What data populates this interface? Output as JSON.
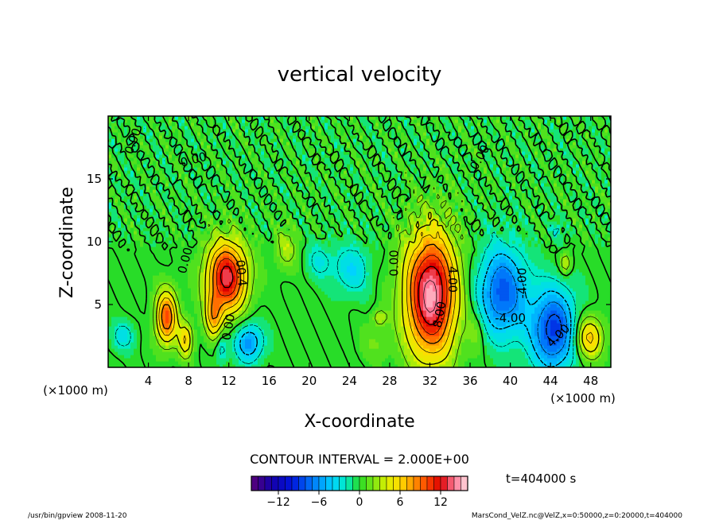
{
  "chart_data": {
    "type": "heatmap",
    "title": "vertical velocity",
    "xlabel": "X-coordinate",
    "ylabel": "Z-coordinate",
    "x_unit": "(×1000 m)",
    "z_unit": "(×1000 m)",
    "xlim": [
      0,
      50
    ],
    "zlim": [
      0,
      20
    ],
    "x_ticks": [
      "4",
      "8",
      "12",
      "16",
      "20",
      "24",
      "28",
      "32",
      "36",
      "40",
      "44",
      "48"
    ],
    "z_ticks": [
      "5",
      "10",
      "15"
    ],
    "contour_interval_text": "CONTOUR INTERVAL = 2.000E+00",
    "time_text": "t=404000 s",
    "colorbar": {
      "min": -16,
      "max": 16,
      "step": 1,
      "tick_labels": [
        "−12",
        "−6",
        "0",
        "6",
        "12"
      ],
      "tick_values": [
        -12,
        -6,
        0,
        6,
        12
      ]
    },
    "contour_labels": [
      {
        "text": "0.00",
        "x": 2.5,
        "z": 18.0,
        "angle": -70
      },
      {
        "text": "0.00",
        "x": 8.5,
        "z": 16.5,
        "angle": -15
      },
      {
        "text": "0.00",
        "x": 7.7,
        "z": 8.5,
        "angle": -75
      },
      {
        "text": "00.4",
        "x": 13.2,
        "z": 7.5,
        "angle": 85
      },
      {
        "text": "0.00",
        "x": 12.0,
        "z": 3.2,
        "angle": -80
      },
      {
        "text": "0.00",
        "x": 28.5,
        "z": 8.3,
        "angle": -90
      },
      {
        "text": "4.00",
        "x": 34.2,
        "z": 7.0,
        "angle": 90
      },
      {
        "text": "8.00",
        "x": 33.0,
        "z": 4.2,
        "angle": -80
      },
      {
        "text": "0.00",
        "x": 37.0,
        "z": 16.7,
        "angle": -60
      },
      {
        "text": "-4.00",
        "x": 41.2,
        "z": 6.7,
        "angle": -90
      },
      {
        "text": "-4.00",
        "x": 40.0,
        "z": 3.9,
        "angle": 0
      },
      {
        "text": "4.00",
        "x": 44.8,
        "z": 2.5,
        "angle": -45
      }
    ],
    "features": [
      {
        "x": 5.8,
        "z": 4.0,
        "sx": 0.75,
        "sz": 1.5,
        "amp": 10
      },
      {
        "x": 7.7,
        "z": 2.2,
        "sx": 0.5,
        "sz": 1.0,
        "amp": 6
      },
      {
        "x": 11.8,
        "z": 7.2,
        "sx": 1.4,
        "sz": 2.0,
        "amp": 13
      },
      {
        "x": 10.5,
        "z": 4.0,
        "sx": 0.6,
        "sz": 1.2,
        "amp": 6
      },
      {
        "x": 14.0,
        "z": 2.0,
        "sx": 1.0,
        "sz": 1.1,
        "amp": -6
      },
      {
        "x": 32.1,
        "z": 5.8,
        "sx": 1.8,
        "sz": 3.5,
        "amp": 15
      },
      {
        "x": 39.2,
        "z": 6.0,
        "sx": 1.7,
        "sz": 2.5,
        "amp": -8
      },
      {
        "x": 44.3,
        "z": 3.0,
        "sx": 1.6,
        "sz": 2.3,
        "amp": -9
      },
      {
        "x": 47.8,
        "z": 2.4,
        "sx": 1.0,
        "sz": 1.2,
        "amp": 7
      },
      {
        "x": 24.2,
        "z": 7.8,
        "sx": 1.3,
        "sz": 1.4,
        "amp": -3.5
      },
      {
        "x": 21.0,
        "z": 8.5,
        "sx": 0.9,
        "sz": 1.0,
        "amp": -2.5
      },
      {
        "x": 1.5,
        "z": 2.5,
        "sx": 0.8,
        "sz": 0.8,
        "amp": -3
      },
      {
        "x": 17.7,
        "z": 9.5,
        "sx": 0.8,
        "sz": 1.2,
        "amp": 3
      },
      {
        "x": 26.5,
        "z": 2.0,
        "sx": 1.0,
        "sz": 1.0,
        "amp": 1.5
      },
      {
        "x": 27.0,
        "z": 4.0,
        "sx": 0.5,
        "sz": 0.5,
        "amp": 3
      },
      {
        "x": 44.6,
        "z": 11.0,
        "sx": 0.4,
        "sz": 0.6,
        "amp": -2
      },
      {
        "x": 45.5,
        "z": 8.3,
        "sx": 0.4,
        "sz": 0.6,
        "amp": 4
      },
      {
        "x": 11.3,
        "z": 1.5,
        "sx": 0.4,
        "sz": 0.8,
        "amp": -3
      },
      {
        "x": 36.6,
        "z": 2.8,
        "sx": 0.6,
        "sz": 1.2,
        "amp": 2
      }
    ]
  },
  "footer": {
    "left": "/usr/bin/gpview  2008-11-20",
    "right": "MarsCond_VelZ.nc@VelZ,x=0:50000,z=0:20000,t=404000"
  }
}
